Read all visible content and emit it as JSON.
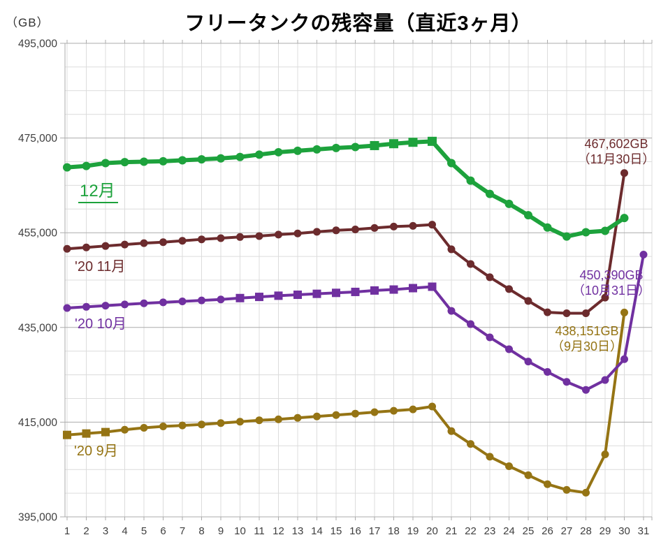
{
  "chart_data": {
    "type": "line",
    "title": "フリータンクの残容量（直近3ヶ月）",
    "ylabel_unit": "（GB）",
    "ylim": [
      395000,
      495000
    ],
    "y_major_ticks": [
      395000,
      415000,
      435000,
      455000,
      475000,
      495000
    ],
    "y_tick_labels": [
      "395,000",
      "415,000",
      "435,000",
      "455,000",
      "475,000",
      "495,000"
    ],
    "y_minor_step": 5000,
    "x_categories": [
      1,
      2,
      3,
      4,
      5,
      6,
      7,
      8,
      9,
      10,
      11,
      12,
      13,
      14,
      15,
      16,
      17,
      18,
      19,
      20,
      21,
      22,
      23,
      24,
      25,
      26,
      27,
      28,
      29,
      30,
      31
    ],
    "legend_position": "inline-left",
    "grid": "on",
    "colors": {
      "grid_minor": "#dcdcdc",
      "grid_major": "#ababab",
      "axis_text": "#3f3f3f",
      "title_text": "#000000"
    },
    "series": [
      {
        "name": "12月",
        "color": "#1da23c",
        "line_width": 6,
        "marker_radius": 6,
        "square_size": 13,
        "square_days": [
          17,
          18,
          19,
          20
        ],
        "values": [
          468800,
          469100,
          469700,
          469900,
          470000,
          470100,
          470300,
          470500,
          470700,
          471000,
          471500,
          472000,
          472300,
          472600,
          472900,
          473100,
          473400,
          473800,
          474100,
          474300,
          469700,
          466000,
          463200,
          461100,
          458700,
          456100,
          454200,
          455100,
          455400,
          458100
        ]
      },
      {
        "name": "'20 11月",
        "color": "#6c2b2d",
        "line_width": 4,
        "marker_radius": 5.5,
        "square_size": 12,
        "square_days": [],
        "values": [
          451600,
          451900,
          452200,
          452500,
          452800,
          453000,
          453300,
          453600,
          453850,
          454100,
          454300,
          454600,
          454850,
          455200,
          455500,
          455700,
          456000,
          456300,
          456450,
          456700,
          451500,
          448400,
          445600,
          443100,
          440600,
          438200,
          438000,
          438000,
          441300,
          467602
        ]
      },
      {
        "name": "'20 10月",
        "color": "#7030a0",
        "line_width": 4,
        "marker_radius": 5.5,
        "square_size": 12,
        "square_days": [
          10,
          11,
          12,
          13,
          14,
          15,
          16,
          17,
          18,
          19,
          20
        ],
        "values": [
          439100,
          439350,
          439600,
          439850,
          440100,
          440300,
          440500,
          440700,
          440900,
          441200,
          441450,
          441700,
          441900,
          442100,
          442300,
          442500,
          442800,
          443000,
          443300,
          443600,
          438500,
          435700,
          432900,
          430400,
          427800,
          425600,
          423500,
          421800,
          423900,
          428300,
          450390
        ]
      },
      {
        "name": "'20 9月",
        "color": "#957414",
        "line_width": 4,
        "marker_radius": 5.5,
        "square_size": 12,
        "square_days": [
          1,
          2,
          3
        ],
        "values": [
          412300,
          412600,
          412900,
          413400,
          413800,
          414100,
          414300,
          414500,
          414800,
          415100,
          415400,
          415600,
          415900,
          416200,
          416500,
          416800,
          417100,
          417400,
          417700,
          418300,
          413100,
          410400,
          407700,
          405700,
          403800,
          401900,
          400700,
          400100,
          408200,
          438151
        ]
      }
    ],
    "annotations": [
      {
        "value": "467,602GB",
        "date": "（11月30日）",
        "series": "'20 11月"
      },
      {
        "value": "450,390GB",
        "date": "（10月31日）",
        "series": "'20 10月"
      },
      {
        "value": "438,151GB",
        "date": "（9月30日）",
        "series": "'20 9月"
      }
    ]
  }
}
